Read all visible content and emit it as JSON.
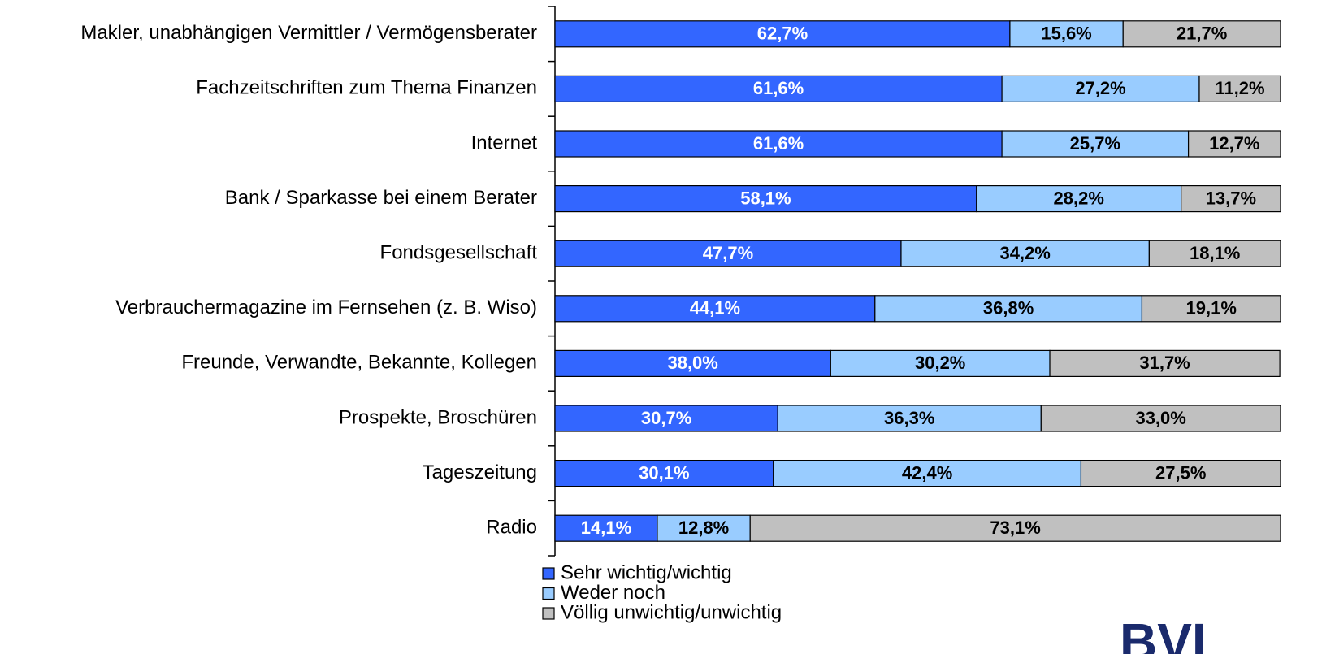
{
  "chart_data": {
    "type": "stacked_bar_horizontal",
    "categories": [
      "Makler, unabhängigen Vermittler / Vermögensberater",
      "Fachzeitschriften zum Thema Finanzen",
      "Internet",
      "Bank / Sparkasse bei einem Berater",
      "Fondsgesellschaft",
      "Verbrauchermagazine im Fernsehen (z. B. Wiso)",
      "Freunde, Verwandte, Bekannte, Kollegen",
      "Prospekte, Broschüren",
      "Tageszeitung",
      "Radio"
    ],
    "series": [
      {
        "name": "Sehr wichtig/wichtig",
        "color": "#3366ff",
        "values": [
          62.7,
          61.6,
          61.6,
          58.1,
          47.7,
          44.1,
          38.0,
          30.7,
          30.1,
          14.1
        ],
        "value_labels": [
          "62,7%",
          "61,6%",
          "61,6%",
          "58,1%",
          "47,7%",
          "44,1%",
          "38,0%",
          "30,7%",
          "30,1%",
          "14,1%"
        ]
      },
      {
        "name": "Weder noch",
        "color": "#99ccff",
        "values": [
          15.6,
          27.2,
          25.7,
          28.2,
          34.2,
          36.8,
          30.2,
          36.3,
          42.4,
          12.8
        ],
        "value_labels": [
          "15,6%",
          "27,2%",
          "25,7%",
          "28,2%",
          "34,2%",
          "36,8%",
          "30,2%",
          "36,3%",
          "42,4%",
          "12,8%"
        ]
      },
      {
        "name": "Völlig unwichtig/unwichtig",
        "color": "#c0c0c0",
        "values": [
          21.7,
          11.2,
          12.7,
          13.7,
          18.1,
          19.1,
          31.7,
          33.0,
          27.5,
          73.1
        ],
        "value_labels": [
          "21,7%",
          "11,2%",
          "12,7%",
          "13,7%",
          "18,1%",
          "19,1%",
          "31,7%",
          "33,0%",
          "27,5%",
          "73,1%"
        ]
      }
    ],
    "xlim": [
      0,
      100
    ],
    "logo": "BVI"
  }
}
